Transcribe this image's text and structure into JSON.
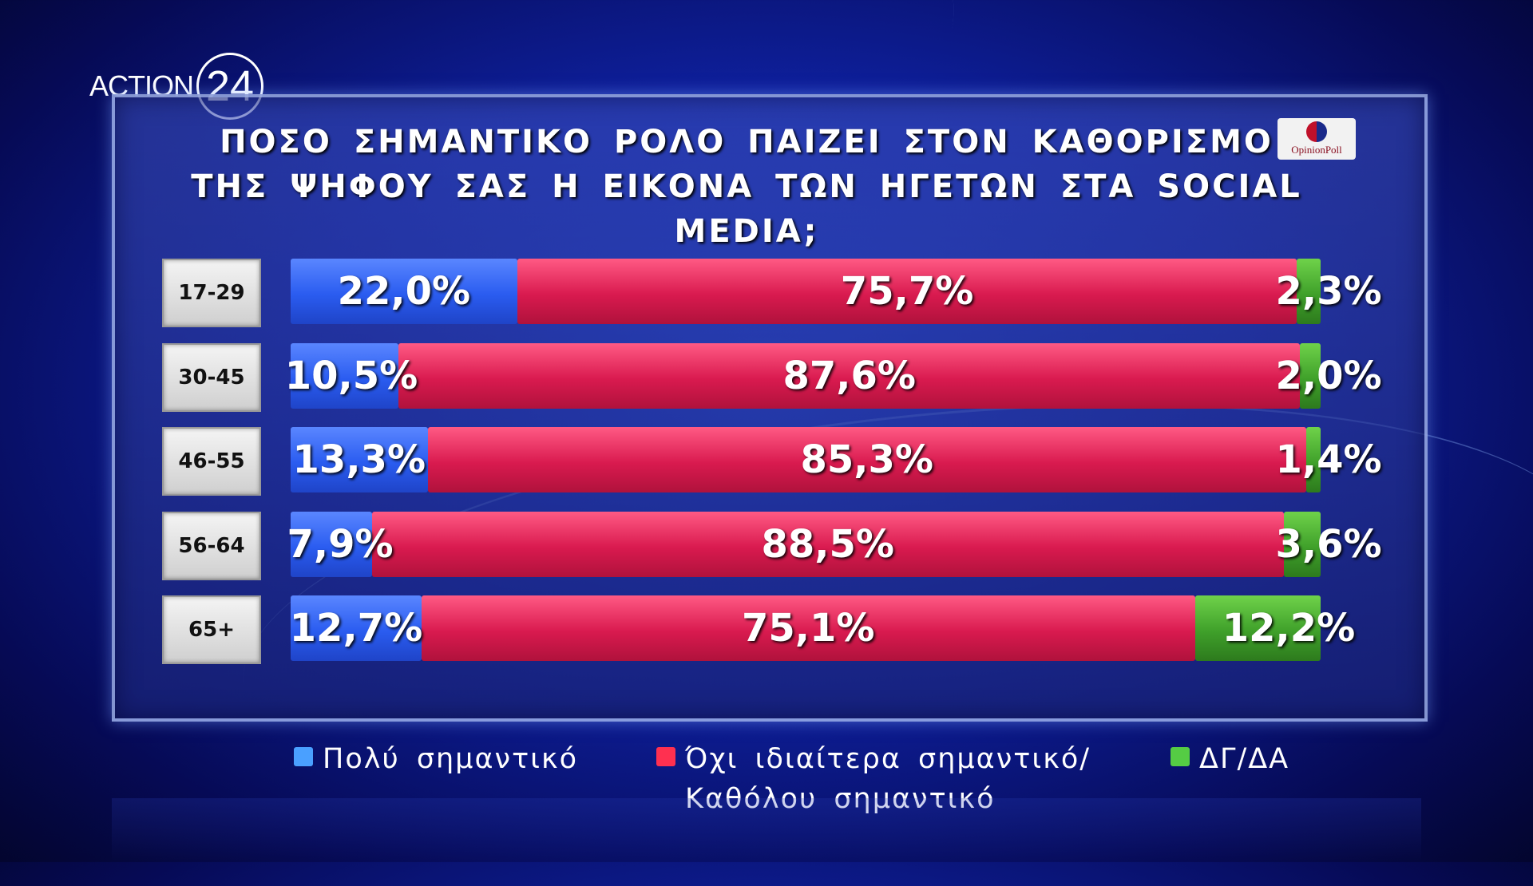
{
  "brand": {
    "word": "ACTION",
    "number": "24"
  },
  "pollster": {
    "name": "OpinionPoll"
  },
  "chart_data": {
    "type": "bar",
    "orientation": "horizontal",
    "stacked": true,
    "title": "ΠΟΣΟ ΣΗΜΑΝΤΙΚΟ ΡΟΛΟ ΠΑΙΖΕΙ ΣΤΟΝ ΚΑΘΟΡΙΣΜΟ ΤΗΣ ΨΗΦΟΥ ΣΑΣ Η ΕΙΚΟΝΑ ΤΩΝ ΗΓΕΤΩΝ ΣΤΑ SOCIAL MEDIA;",
    "title_lines": [
      "ΠΟΣΟ ΣΗΜΑΝΤΙΚΟ ΡΟΛΟ ΠΑΙΖΕΙ ΣΤΟΝ ΚΑΘΟΡΙΣΜΟ",
      "ΤΗΣ ΨΗΦΟΥ ΣΑΣ Η ΕΙΚΟΝΑ ΤΩΝ ΗΓΕΤΩΝ ΣΤΑ SOCIAL MEDIA;"
    ],
    "categories": [
      "17-29",
      "30-45",
      "46-55",
      "56-64",
      "65+"
    ],
    "series": [
      {
        "name": "Πολύ σημαντικό",
        "color": "#3d6cf5",
        "values": [
          22.0,
          10.5,
          13.3,
          7.9,
          12.7
        ],
        "labels": [
          "22,0%",
          "10,5%",
          "13,3%",
          "7,9%",
          "12,7%"
        ]
      },
      {
        "name": "Όχι ιδιαίτερα σημαντικό/ Καθόλου σημαντικό",
        "color": "#e0204f",
        "values": [
          75.7,
          87.6,
          85.3,
          88.5,
          75.1
        ],
        "labels": [
          "75,7%",
          "87,6%",
          "85,3%",
          "88,5%",
          "75,1%"
        ]
      },
      {
        "name": "ΔΓ/ΔΑ",
        "color": "#4fb832",
        "values": [
          2.3,
          2.0,
          1.4,
          3.6,
          12.2
        ],
        "labels": [
          "2,3%",
          "2,0%",
          "1,4%",
          "3,6%",
          "12,2%"
        ]
      }
    ],
    "legend": {
      "placement": "bottom",
      "items": [
        {
          "lines": [
            "Πολύ σημαντικό"
          ],
          "color": "#4aa0ff"
        },
        {
          "lines": [
            "Όχι ιδιαίτερα σημαντικό/",
            "Καθόλου σημαντικό"
          ],
          "color": "#ff3050"
        },
        {
          "lines": [
            "ΔΓ/ΔΑ"
          ],
          "color": "#55cc44"
        }
      ]
    },
    "xlim": [
      0,
      100
    ]
  }
}
